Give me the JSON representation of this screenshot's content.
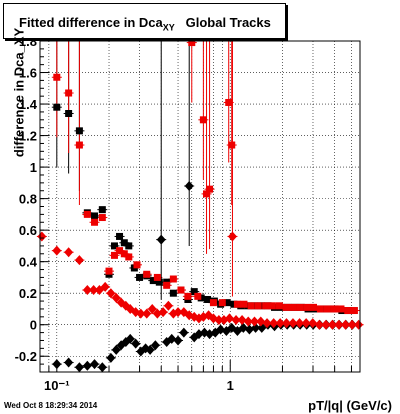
{
  "title": {
    "prefix": "Fitted difference in Dca",
    "subscript": "XY",
    "suffix": "Global Tracks"
  },
  "timestamp": "Wed Oct  8 18:29:34 2014",
  "chart_data": {
    "type": "scatter",
    "title": "Fitted difference in Dca_XY Global Tracks",
    "xlabel": "pT/|q| (GeV/c)",
    "ylabel": "difference in Dca_XY",
    "xscale": "log",
    "xlim": [
      0.08,
      5.6
    ],
    "ylim": [
      -0.3,
      1.8
    ],
    "x_tick_labels": [
      {
        "value": 0.1,
        "label": "10⁻¹"
      },
      {
        "value": 1,
        "label": "1"
      }
    ],
    "y_tick_labels": [
      "-0.2",
      "0",
      "0.2",
      "0.4",
      "0.6",
      "0.8",
      "1",
      "1.2",
      "1.4",
      "1.6",
      "1.8"
    ],
    "series": [
      {
        "color": "#000000",
        "marker": "square",
        "points": [
          [
            0.1,
            1.38
          ],
          [
            0.117,
            1.34
          ],
          [
            0.135,
            1.23
          ],
          [
            0.15,
            0.71
          ],
          [
            0.165,
            0.69
          ],
          [
            0.183,
            0.73
          ],
          [
            0.2,
            0.32
          ],
          [
            0.215,
            0.5
          ],
          [
            0.23,
            0.56
          ],
          [
            0.245,
            0.52
          ],
          [
            0.26,
            0.5
          ],
          [
            0.28,
            0.36
          ],
          [
            0.3,
            0.3
          ],
          [
            0.33,
            0.31
          ],
          [
            0.36,
            0.28
          ],
          [
            0.39,
            0.27
          ],
          [
            0.43,
            0.27
          ],
          [
            0.47,
            0.2
          ],
          [
            0.52,
            0.22
          ],
          [
            0.57,
            0.16
          ],
          [
            0.62,
            0.21
          ],
          [
            0.68,
            0.17
          ],
          [
            0.74,
            0.16
          ],
          [
            0.81,
            0.15
          ],
          [
            0.88,
            0.13
          ],
          [
            0.96,
            0.14
          ],
          [
            1.05,
            0.13
          ],
          [
            1.15,
            0.12
          ],
          [
            1.26,
            0.12
          ],
          [
            1.38,
            0.12
          ],
          [
            1.51,
            0.12
          ],
          [
            1.65,
            0.12
          ],
          [
            1.8,
            0.11
          ],
          [
            1.97,
            0.11
          ],
          [
            2.15,
            0.11
          ],
          [
            2.35,
            0.11
          ],
          [
            2.57,
            0.11
          ],
          [
            2.81,
            0.1
          ],
          [
            3.07,
            0.1
          ],
          [
            3.36,
            0.1
          ],
          [
            3.68,
            0.1
          ],
          [
            4.02,
            0.1
          ],
          [
            4.4,
            0.09
          ],
          [
            4.81,
            0.09
          ]
        ]
      },
      {
        "color": "#ee0000",
        "marker": "square",
        "points": [
          [
            0.1,
            1.57
          ],
          [
            0.117,
            1.47
          ],
          [
            0.135,
            1.14
          ],
          [
            0.15,
            0.7
          ],
          [
            0.165,
            0.65
          ],
          [
            0.183,
            0.68
          ],
          [
            0.2,
            0.34
          ],
          [
            0.215,
            0.44
          ],
          [
            0.23,
            0.47
          ],
          [
            0.245,
            0.45
          ],
          [
            0.26,
            0.43
          ],
          [
            0.29,
            0.38
          ],
          [
            0.33,
            0.32
          ],
          [
            0.38,
            0.3
          ],
          [
            0.43,
            0.25
          ],
          [
            0.47,
            0.29
          ],
          [
            0.52,
            0.22
          ],
          [
            0.57,
            0.18
          ],
          [
            0.6,
            1.79
          ],
          [
            0.65,
            0.18
          ],
          [
            0.7,
            1.3
          ],
          [
            0.73,
            0.83
          ],
          [
            0.76,
            0.86
          ],
          [
            0.8,
            0.14
          ],
          [
            0.9,
            0.14
          ],
          [
            0.98,
            1.41
          ],
          [
            1.02,
            1.14
          ],
          [
            1.1,
            0.13
          ],
          [
            1.2,
            0.13
          ],
          [
            1.32,
            0.12
          ],
          [
            1.45,
            0.12
          ],
          [
            1.6,
            0.12
          ],
          [
            1.75,
            0.12
          ],
          [
            1.92,
            0.12
          ],
          [
            2.1,
            0.11
          ],
          [
            2.3,
            0.11
          ],
          [
            2.52,
            0.11
          ],
          [
            2.76,
            0.11
          ],
          [
            3.02,
            0.11
          ],
          [
            3.31,
            0.1
          ],
          [
            3.63,
            0.1
          ],
          [
            3.97,
            0.1
          ],
          [
            4.35,
            0.1
          ],
          [
            4.76,
            0.09
          ],
          [
            5.2,
            0.09
          ]
        ]
      },
      {
        "color": "#000000",
        "marker": "diamond",
        "points": [
          [
            0.1,
            -0.25
          ],
          [
            0.117,
            -0.24
          ],
          [
            0.135,
            -0.27
          ],
          [
            0.15,
            -0.26
          ],
          [
            0.165,
            -0.25
          ],
          [
            0.183,
            -0.27
          ],
          [
            0.205,
            -0.21
          ],
          [
            0.22,
            -0.16
          ],
          [
            0.235,
            -0.13
          ],
          [
            0.25,
            -0.11
          ],
          [
            0.265,
            -0.09
          ],
          [
            0.285,
            -0.12
          ],
          [
            0.305,
            -0.17
          ],
          [
            0.325,
            -0.15
          ],
          [
            0.345,
            -0.16
          ],
          [
            0.37,
            -0.13
          ],
          [
            0.4,
            0.54
          ],
          [
            0.43,
            -0.11
          ],
          [
            0.46,
            -0.09
          ],
          [
            0.5,
            -0.1
          ],
          [
            0.54,
            -0.05
          ],
          [
            0.58,
            0.88
          ],
          [
            0.62,
            -0.08
          ],
          [
            0.66,
            -0.06
          ],
          [
            0.71,
            -0.05
          ],
          [
            0.76,
            -0.06
          ],
          [
            0.82,
            -0.05
          ],
          [
            0.88,
            -0.03
          ],
          [
            0.95,
            -0.04
          ],
          [
            1.02,
            -0.02
          ],
          [
            1.1,
            -0.04
          ],
          [
            1.19,
            -0.02
          ],
          [
            1.29,
            -0.03
          ],
          [
            1.4,
            -0.02
          ],
          [
            1.52,
            -0.02
          ],
          [
            1.65,
            0.0
          ],
          [
            1.8,
            -0.01
          ],
          [
            1.96,
            0.0
          ],
          [
            2.13,
            0.0
          ],
          [
            2.32,
            0.0
          ],
          [
            2.53,
            0.0
          ],
          [
            2.76,
            0.0
          ],
          [
            3.01,
            0.0
          ],
          [
            3.28,
            0.0
          ],
          [
            3.58,
            0.0
          ],
          [
            3.9,
            0.0
          ],
          [
            4.25,
            0.0
          ],
          [
            4.64,
            0.0
          ],
          [
            5.06,
            0.0
          ]
        ]
      },
      {
        "color": "#ee0000",
        "marker": "diamond",
        "points": [
          [
            0.082,
            0.56
          ],
          [
            0.1,
            0.47
          ],
          [
            0.117,
            0.46
          ],
          [
            0.135,
            0.41
          ],
          [
            0.15,
            0.22
          ],
          [
            0.163,
            0.22
          ],
          [
            0.176,
            0.22
          ],
          [
            0.19,
            0.24
          ],
          [
            0.205,
            0.2
          ],
          [
            0.22,
            0.17
          ],
          [
            0.235,
            0.14
          ],
          [
            0.25,
            0.12
          ],
          [
            0.265,
            0.1
          ],
          [
            0.285,
            0.08
          ],
          [
            0.305,
            0.07
          ],
          [
            0.33,
            0.07
          ],
          [
            0.355,
            0.1
          ],
          [
            0.38,
            0.07
          ],
          [
            0.41,
            0.08
          ],
          [
            0.44,
            0.12
          ],
          [
            0.47,
            0.07
          ],
          [
            0.5,
            0.08
          ],
          [
            0.54,
            0.08
          ],
          [
            0.58,
            0.06
          ],
          [
            0.62,
            0.05
          ],
          [
            0.66,
            0.04
          ],
          [
            0.7,
            0.05
          ],
          [
            0.75,
            0.06
          ],
          [
            0.8,
            0.04
          ],
          [
            0.86,
            0.03
          ],
          [
            0.92,
            0.03
          ],
          [
            0.99,
            0.04
          ],
          [
            1.03,
            0.56
          ],
          [
            1.08,
            0.03
          ],
          [
            1.17,
            0.03
          ],
          [
            1.27,
            0.02
          ],
          [
            1.38,
            0.02
          ],
          [
            1.5,
            0.02
          ],
          [
            1.63,
            0.01
          ],
          [
            1.78,
            0.01
          ],
          [
            1.94,
            0.01
          ],
          [
            2.11,
            0.01
          ],
          [
            2.3,
            0.01
          ],
          [
            2.51,
            0.01
          ],
          [
            2.74,
            0.01
          ],
          [
            2.99,
            0.01
          ],
          [
            3.26,
            0.0
          ],
          [
            3.56,
            0.0
          ],
          [
            3.88,
            0.0
          ],
          [
            4.23,
            0.0
          ],
          [
            4.62,
            0.0
          ],
          [
            5.04,
            0.0
          ],
          [
            5.5,
            0.0
          ]
        ]
      }
    ],
    "grid": true,
    "legend": "none"
  }
}
